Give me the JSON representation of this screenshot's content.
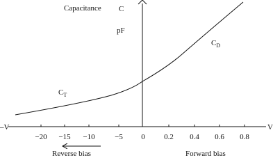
{
  "axes": {
    "y_label": "Capacitance",
    "y_symbol": "C",
    "y_unit": "pF",
    "x_negative": "–V",
    "x_positive": "V",
    "x_ticks": [
      "−20",
      "−15",
      "−10",
      "−5",
      "0",
      "0.2",
      "0.4",
      "0.6",
      "0.8"
    ]
  },
  "curves": [
    {
      "symbol": "C",
      "subscript": "T"
    },
    {
      "symbol": "C",
      "subscript": "D"
    }
  ],
  "regions": [
    "Reverse bias",
    "Forward bias"
  ]
}
